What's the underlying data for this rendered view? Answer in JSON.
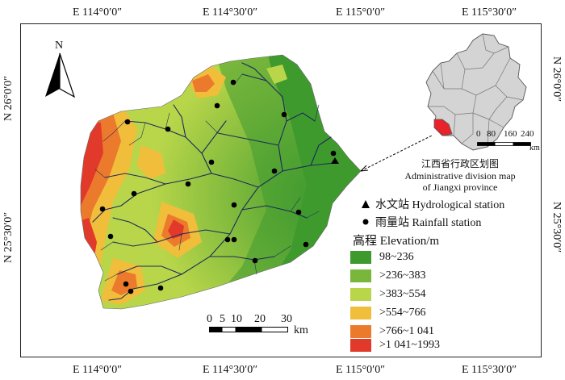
{
  "axes": {
    "top_labels": [
      "E 114°0′0″",
      "E 114°30′0″",
      "E 115°0′0″",
      "E 115°30′0″"
    ],
    "bottom_labels": [
      "E 114°0′0″",
      "E 114°30′0″",
      "E 115°0′0″",
      "E 115°30′0″"
    ],
    "left_labels": [
      "N 26°0′0″",
      "N 25°30′0″"
    ],
    "right_labels": [
      "N 26°0′0″",
      "N 25°30′0″"
    ]
  },
  "north_arrow": {
    "label": "N"
  },
  "inset": {
    "caption_cn": "江西省行政区划图",
    "caption_en1": "Administrative division map",
    "caption_en2": "of Jiangxi province",
    "scale_ticks": [
      "0",
      "80",
      "160",
      "240"
    ],
    "scale_unit": "km"
  },
  "symbols": {
    "hydro": "水文站 Hydrological station",
    "rain": "雨量站 Rainfall station"
  },
  "legend": {
    "title": "高程 Elevation/m",
    "classes": [
      {
        "label": "98~236",
        "color": "#3f9a2e"
      },
      {
        "label": ">236~383",
        "color": "#78b63c"
      },
      {
        "label": ">383~554",
        "color": "#b9d64a"
      },
      {
        "label": ">554~766",
        "color": "#f0be3a"
      },
      {
        "label": ">766~1 041",
        "color": "#ec7a2c"
      },
      {
        "label": ">1 041~1993",
        "color": "#e23a2a"
      }
    ]
  },
  "scalebar": {
    "ticks": [
      "0",
      "5",
      "10",
      "20",
      "30"
    ],
    "unit": "km"
  }
}
